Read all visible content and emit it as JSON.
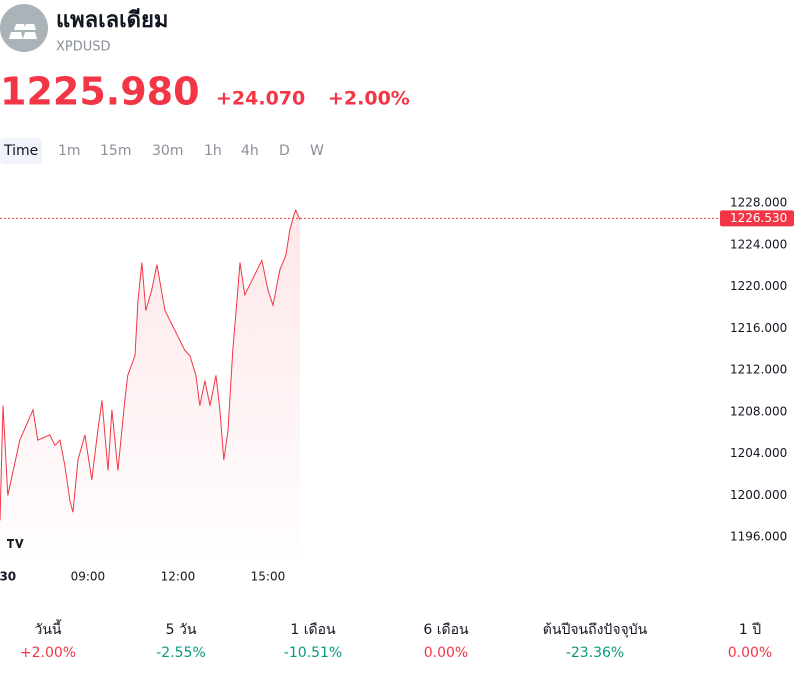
{
  "header": {
    "title": "แพลเลเดียม",
    "symbol": "XPDUSD",
    "price": "1225.980",
    "change": "+24.070",
    "change_percent": "+2.00%",
    "color": "#f23645"
  },
  "timeframes": [
    "Time",
    "1m",
    "15m",
    "30m",
    "1h",
    "4h",
    "D",
    "W"
  ],
  "chart_data": {
    "type": "line",
    "color": "#f23645",
    "x": [
      6.07,
      6.17,
      6.33,
      6.73,
      7.17,
      7.33,
      7.73,
      7.9,
      8.07,
      8.23,
      8.4,
      8.5,
      8.67,
      8.9,
      9.13,
      9.33,
      9.47,
      9.67,
      9.8,
      10,
      10.23,
      10.33,
      10.57,
      10.67,
      10.8,
      10.93,
      11.13,
      11.3,
      11.57,
      11.9,
      12.23,
      12.4,
      12.6,
      12.73,
      12.9,
      13.07,
      13.27,
      13.4,
      13.53,
      13.67,
      13.83,
      13.97,
      14.07,
      14.23,
      14.47,
      14.8,
      15,
      15.17,
      15.4,
      15.6,
      15.73,
      15.87,
      15.93,
      16.07
    ],
    "values": [
      1197.6,
      1208.6,
      1200.0,
      1205.3,
      1208.2,
      1205.3,
      1205.8,
      1204.8,
      1205.3,
      1202.9,
      1199.5,
      1198.4,
      1203.4,
      1205.8,
      1201.5,
      1206.2,
      1209.1,
      1202.4,
      1208.2,
      1202.4,
      1209.1,
      1211.5,
      1213.4,
      1218.7,
      1222.3,
      1217.7,
      1219.7,
      1222.1,
      1217.7,
      1215.8,
      1213.9,
      1213.4,
      1211.5,
      1208.6,
      1211.0,
      1208.6,
      1211.5,
      1208.2,
      1203.4,
      1206.2,
      1213.9,
      1218.7,
      1222.3,
      1219.2,
      1220.6,
      1222.5,
      1219.7,
      1218.2,
      1221.6,
      1223.0,
      1225.4,
      1226.9,
      1227.3,
      1226.4
    ],
    "xlim": [
      6.07,
      29.9
    ],
    "xticks": [
      {
        "value": 6.33,
        "label": "30"
      },
      {
        "value": 9,
        "label": "09:00"
      },
      {
        "value": 12,
        "label": "12:00"
      },
      {
        "value": 15,
        "label": "15:00"
      }
    ],
    "ylim": [
      1194.3,
      1230.2
    ],
    "yticks": [
      {
        "value": 1196,
        "label": "1196.000"
      },
      {
        "value": 1200,
        "label": "1200.000"
      },
      {
        "value": 1204,
        "label": "1204.000"
      },
      {
        "value": 1208,
        "label": "1208.000"
      },
      {
        "value": 1212,
        "label": "1212.000"
      },
      {
        "value": 1216,
        "label": "1216.000"
      },
      {
        "value": 1220,
        "label": "1220.000"
      },
      {
        "value": 1224,
        "label": "1224.000"
      },
      {
        "value": 1228,
        "label": "1228.000"
      }
    ],
    "price_line": {
      "value": 1226.53,
      "label": "1226.530"
    }
  },
  "performance": [
    {
      "label": "วันนี้",
      "value": "+2.00%",
      "color": "#f23645"
    },
    {
      "label": "5 วัน",
      "value": "-2.55%",
      "color": "#089981"
    },
    {
      "label": "1 เดือน",
      "value": "-10.51%",
      "color": "#089981"
    },
    {
      "label": "6 เดือน",
      "value": "0.00%",
      "color": "#f23645"
    },
    {
      "label": "ต้นปีจนถึงปัจจุบัน",
      "value": "-23.36%",
      "color": "#089981"
    },
    {
      "label": "1 ปี",
      "value": "0.00%",
      "color": "#f23645"
    }
  ]
}
